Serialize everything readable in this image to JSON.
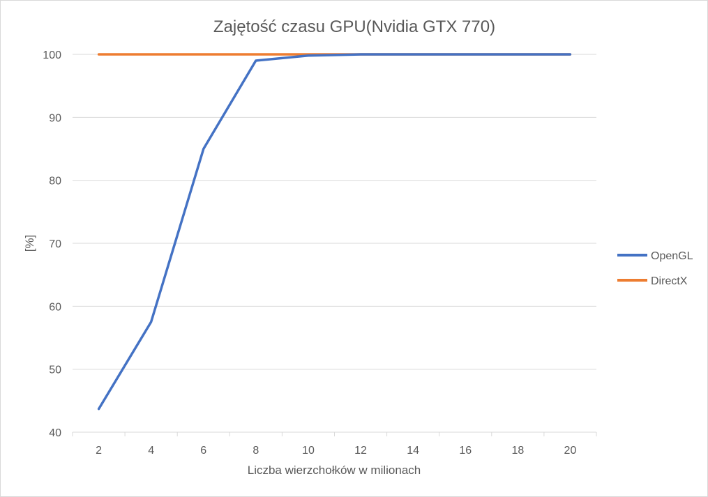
{
  "chart_data": {
    "type": "line",
    "title": "Zajętość czasu GPU(Nvidia GTX 770)",
    "xlabel": "Liczba wierzchołków w milionach",
    "ylabel": "[%]",
    "categories": [
      "2",
      "4",
      "6",
      "8",
      "10",
      "12",
      "14",
      "16",
      "18",
      "20"
    ],
    "ylim": [
      40,
      100
    ],
    "yticks": [
      40,
      50,
      60,
      70,
      80,
      90,
      100
    ],
    "grid": true,
    "legend_position": "right",
    "series": [
      {
        "name": "OpenGL",
        "color": "#4472c4",
        "values": [
          43.7,
          57.5,
          85,
          99,
          99.8,
          100,
          100,
          100,
          100,
          100
        ]
      },
      {
        "name": "DirectX",
        "color": "#ed7d31",
        "values": [
          100,
          100,
          100,
          100,
          100,
          100,
          100,
          100,
          100,
          100
        ]
      }
    ]
  }
}
